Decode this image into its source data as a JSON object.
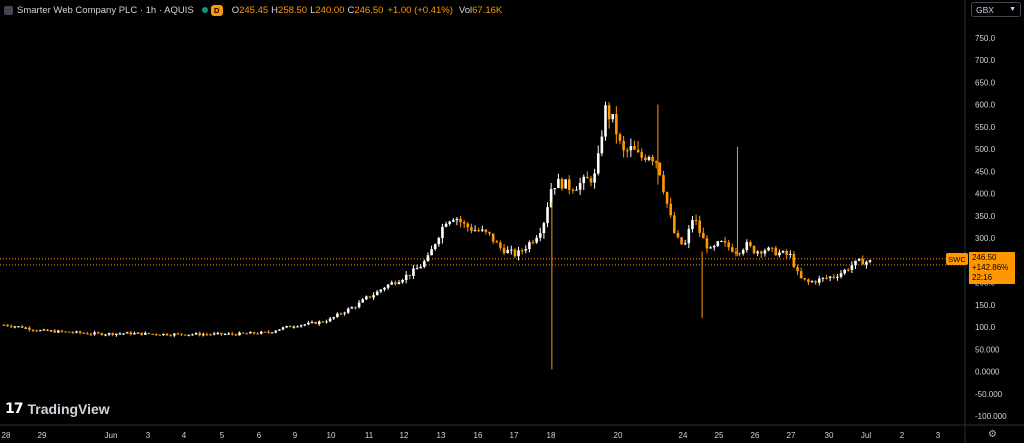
{
  "legend": {
    "title": "Smarter Web Company PLC · 1h · AQUIS",
    "badge": "D",
    "open_label": "O",
    "open": "245.45",
    "high_label": "H",
    "high": "258.50",
    "low_label": "L",
    "low": "240.00",
    "close_label": "C",
    "close": "246.50",
    "change": "+1.00 (+0.41%)",
    "vol_label": "Vol",
    "vol": "67.16K"
  },
  "currency": "GBX",
  "brand": {
    "mark": "17",
    "name": "TradingView"
  },
  "price_tag": {
    "symbol": "SWC",
    "price": "246.50",
    "change": "+142.86%",
    "countdown": "22:16"
  },
  "colors": {
    "up": "#ffffff",
    "down": "#ff9800",
    "background": "#000000",
    "axis_text": "#d1d4dc"
  },
  "chart_data": {
    "type": "candlestick",
    "ylim": [
      -120,
      790
    ],
    "y_ticks": [
      "750.0",
      "700.0",
      "650.0",
      "600.0",
      "550.0",
      "500.0",
      "450.0",
      "400.0",
      "350.0",
      "300.0",
      "250.0",
      "200.0",
      "150.0",
      "100.0",
      "50.000",
      "0.0000",
      "-50.000",
      "-100.000"
    ],
    "x_ticks": [
      "28",
      "29",
      "Jun",
      "3",
      "4",
      "5",
      "6",
      "9",
      "10",
      "11",
      "12",
      "13",
      "16",
      "17",
      "18",
      "20",
      "24",
      "25",
      "26",
      "27",
      "30",
      "Jul",
      "2",
      "3"
    ],
    "current_price": 246.5,
    "close_path": [
      [
        0,
        105
      ],
      [
        2,
        100
      ],
      [
        4,
        92
      ],
      [
        6,
        90
      ],
      [
        8,
        88
      ],
      [
        10,
        85
      ],
      [
        12,
        85
      ],
      [
        14,
        86
      ],
      [
        16,
        85
      ],
      [
        18,
        84
      ],
      [
        20,
        84
      ],
      [
        22,
        84
      ],
      [
        24,
        84
      ],
      [
        26,
        84
      ],
      [
        28,
        86
      ],
      [
        30,
        88
      ],
      [
        31,
        95
      ],
      [
        32,
        100
      ],
      [
        33,
        104
      ],
      [
        34,
        106
      ],
      [
        35,
        109
      ],
      [
        36,
        112
      ],
      [
        37,
        118
      ],
      [
        38,
        130
      ],
      [
        39,
        140
      ],
      [
        40,
        150
      ],
      [
        41,
        165
      ],
      [
        42,
        175
      ],
      [
        43,
        190
      ],
      [
        44,
        200
      ],
      [
        45,
        210
      ],
      [
        46,
        220
      ],
      [
        47,
        235
      ],
      [
        48,
        255
      ],
      [
        49,
        300
      ],
      [
        50,
        340
      ],
      [
        51,
        350
      ],
      [
        52,
        330
      ],
      [
        53,
        320
      ],
      [
        54,
        315
      ],
      [
        55,
        305
      ],
      [
        56,
        280
      ],
      [
        57,
        270
      ],
      [
        58,
        262
      ],
      [
        59,
        280
      ],
      [
        60,
        300
      ],
      [
        61,
        330
      ],
      [
        62,
        420
      ],
      [
        63,
        425
      ],
      [
        64,
        415
      ],
      [
        65,
        420
      ],
      [
        66,
        430
      ],
      [
        67,
        440
      ],
      [
        68,
        590
      ],
      [
        69,
        560
      ],
      [
        70,
        490
      ],
      [
        71,
        500
      ],
      [
        72,
        480
      ],
      [
        73,
        490
      ],
      [
        74,
        470
      ],
      [
        75,
        380
      ],
      [
        76,
        300
      ],
      [
        77,
        280
      ],
      [
        78,
        350
      ],
      [
        79,
        300
      ],
      [
        80,
        270
      ],
      [
        81,
        290
      ],
      [
        82,
        280
      ],
      [
        83,
        270
      ],
      [
        84,
        285
      ],
      [
        85,
        270
      ],
      [
        86,
        275
      ],
      [
        87,
        270
      ],
      [
        88,
        265
      ],
      [
        89,
        260
      ],
      [
        90,
        210
      ],
      [
        91,
        200
      ],
      [
        92,
        205
      ],
      [
        93,
        210
      ],
      [
        94,
        215
      ],
      [
        95,
        225
      ],
      [
        96,
        240
      ],
      [
        97,
        248
      ],
      [
        98,
        246.5
      ]
    ],
    "spikes": [
      [
        62,
        5,
        380
      ],
      [
        74,
        600,
        420
      ],
      [
        79,
        120,
        270
      ],
      [
        83,
        505,
        260
      ]
    ]
  }
}
